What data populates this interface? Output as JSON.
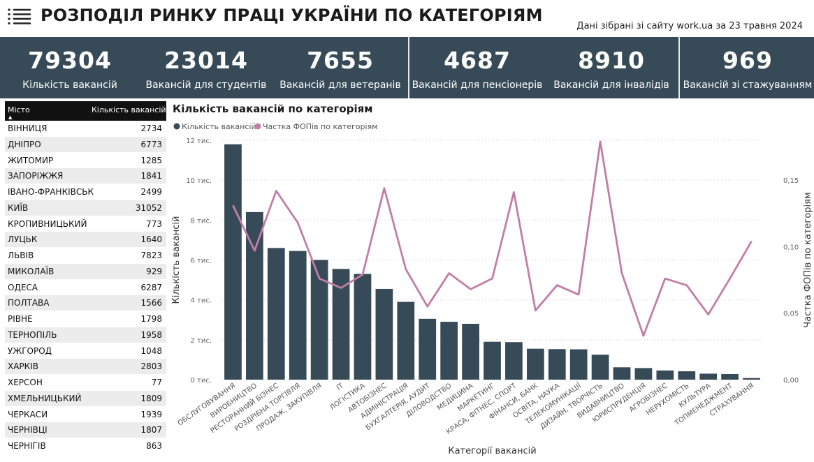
{
  "header": {
    "title": "РОЗПОДІЛ РИНКУ ПРАЦІ УКРАЇНИ ПО КАТЕГОРІЯМ",
    "source": "Дані зібрані зі сайту work.ua за 23 травня 2024"
  },
  "kpis": [
    {
      "value": "79304",
      "label": "Кількість вакансій"
    },
    {
      "value": "23014",
      "label": "Вакансій для студентів"
    },
    {
      "value": "7655",
      "label": "Вакансій для ветеранів"
    },
    {
      "value": "4687",
      "label": "Вакансій для пенсіонерів"
    },
    {
      "value": "8910",
      "label": "Вакансій для інвалідів"
    },
    {
      "value": "969",
      "label": "Вакансій зі стажуванням"
    }
  ],
  "table": {
    "headers": {
      "city": "Місто",
      "count": "Кількість вакансій"
    },
    "rows": [
      {
        "city": "ВІННИЦЯ",
        "count": "2734"
      },
      {
        "city": "ДНІПРО",
        "count": "6773"
      },
      {
        "city": "ЖИТОМИР",
        "count": "1285"
      },
      {
        "city": "ЗАПОРІЖЖЯ",
        "count": "1841"
      },
      {
        "city": "ІВАНО-ФРАНКІВСЬК",
        "count": "2499"
      },
      {
        "city": "КИЇВ",
        "count": "31052"
      },
      {
        "city": "КРОПИВНИЦЬКИЙ",
        "count": "773"
      },
      {
        "city": "ЛУЦЬК",
        "count": "1640"
      },
      {
        "city": "ЛЬВІВ",
        "count": "7823"
      },
      {
        "city": "МИКОЛАЇВ",
        "count": "929"
      },
      {
        "city": "ОДЕСА",
        "count": "6287"
      },
      {
        "city": "ПОЛТАВА",
        "count": "1566"
      },
      {
        "city": "РІВНЕ",
        "count": "1798"
      },
      {
        "city": "ТЕРНОПІЛЬ",
        "count": "1958"
      },
      {
        "city": "УЖГОРОД",
        "count": "1048"
      },
      {
        "city": "ХАРКІВ",
        "count": "2803"
      },
      {
        "city": "ХЕРСОН",
        "count": "77"
      },
      {
        "city": "ХМЕЛЬНИЦЬКИЙ",
        "count": "1809"
      },
      {
        "city": "ЧЕРКАСИ",
        "count": "1939"
      },
      {
        "city": "ЧЕРНІВЦІ",
        "count": "1807"
      },
      {
        "city": "ЧЕРНІГІВ",
        "count": "863"
      }
    ]
  },
  "chart_data": {
    "type": "bar",
    "title": "Кількість вакансій по категоріям",
    "xlabel": "Категорії вакансій",
    "ylabel": "Кількість вакансій",
    "y2label": "Частка ФОПів по категоріям",
    "ylim": [
      0,
      12000
    ],
    "y2lim": [
      0,
      0.18
    ],
    "yticks": [
      "0 тис.",
      "2 тис.",
      "4 тис.",
      "6 тис.",
      "8 тис.",
      "10 тис.",
      "12 тис."
    ],
    "y2ticks": [
      "0,00",
      "0,05",
      "0,10",
      "0,15"
    ],
    "legend_position": "top-left",
    "categories": [
      "ОБСЛУГОВУВАННЯ",
      "ВИРОБНИЦТВО",
      "РЕСТОРАННИЙ БІЗНЕС",
      "РОЗДРІБНА ТОРГІВЛЯ",
      "ПРОДАЖ, ЗАКУПІВЛЯ",
      "IT",
      "ЛОГІСТИКА",
      "АВТОБІЗНЕС",
      "АДМІНІСТРАЦІЯ",
      "БУХГАЛТЕРІЯ, АУДИТ",
      "ДІЛОВОДСТВО",
      "МЕДИЦИНА",
      "МАРКЕТИНГ",
      "КРАСА, ФІТНЕС, СПОРТ",
      "ФІНАНСИ, БАНК",
      "ОСВІТА, НАУКА",
      "ТЕЛЕКОМУНІКАЦІЇ",
      "ДИЗАЙН, ТВОРЧІСТЬ",
      "ВИДАВНИЦТВО",
      "ЮРИСПРУДЕНЦІЯ",
      "АГРОБІЗНЕС",
      "НЕРУХОМІСТЬ",
      "КУЛЬТУРА",
      "ТОПМЕНЕДЖМЕНТ",
      "СТРАХУВАННЯ"
    ],
    "series": [
      {
        "name": "Кількість вакансій",
        "type": "bar",
        "color": "#374a57",
        "values": [
          11800,
          8400,
          6600,
          6450,
          6000,
          5550,
          5300,
          4550,
          3900,
          3050,
          2900,
          2800,
          1900,
          1880,
          1550,
          1530,
          1520,
          1250,
          620,
          580,
          460,
          420,
          300,
          280,
          80
        ]
      },
      {
        "name": "Частка ФОПів по категоріям",
        "type": "line",
        "axis": "y2",
        "color": "#c17ea6",
        "values": [
          0.131,
          0.097,
          0.142,
          0.118,
          0.076,
          0.069,
          0.079,
          0.144,
          0.083,
          0.055,
          0.08,
          0.068,
          0.076,
          0.141,
          0.052,
          0.071,
          0.064,
          0.179,
          0.08,
          0.033,
          0.076,
          0.071,
          0.049,
          0.076,
          0.104
        ]
      }
    ]
  }
}
